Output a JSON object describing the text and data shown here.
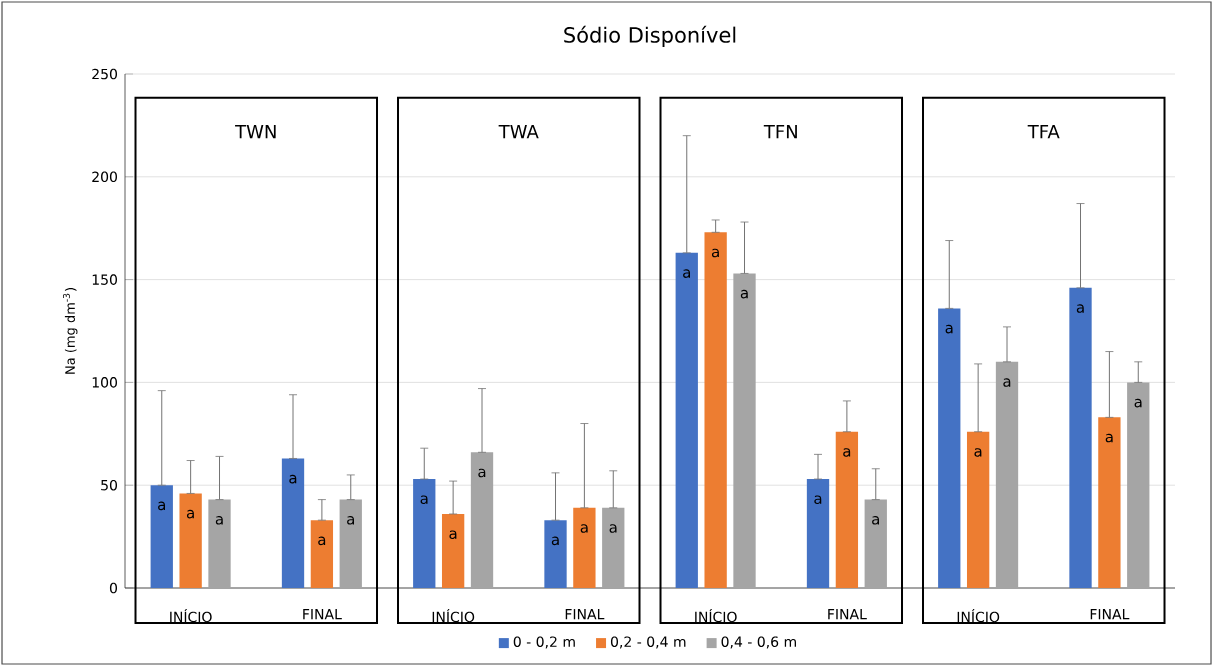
{
  "chart_data": {
    "type": "bar",
    "title": "Sódio Disponível",
    "ylabel": "Na (mg dm$^{-3}$)",
    "categories": [
      "INÍCIO",
      "FINAL",
      "INÍCIO",
      "FINAL",
      "INÍCIO",
      "FINAL",
      "INÍCIO",
      "FINAL"
    ],
    "series": [
      {
        "name": "0 - 0,2 m",
        "color": "#4472c4",
        "values": [
          50,
          63,
          53,
          33,
          163,
          53,
          136,
          146
        ],
        "errors": [
          [
            50,
            96
          ],
          [
            63,
            94
          ],
          [
            53,
            68
          ],
          [
            33,
            56
          ],
          [
            163,
            220
          ],
          [
            53,
            65
          ],
          [
            136,
            169
          ],
          [
            146,
            187
          ]
        ],
        "value_labels": [
          "a",
          "a",
          "a",
          "a",
          "a",
          "a",
          "a",
          "a"
        ]
      },
      {
        "name": "0,2 - 0,4 m",
        "color": "#ed7d31",
        "values": [
          46,
          33,
          36,
          39,
          173,
          76,
          76,
          83
        ],
        "errors": [
          [
            46,
            62
          ],
          [
            33,
            43
          ],
          [
            36,
            52
          ],
          [
            39,
            80
          ],
          [
            173,
            179
          ],
          [
            76,
            91
          ],
          [
            76,
            109
          ],
          [
            83,
            115
          ]
        ],
        "value_labels": [
          "a",
          "a",
          "a",
          "a",
          "a",
          "a",
          "a",
          "a"
        ]
      },
      {
        "name": "0,4 - 0,6 m",
        "color": "#a5a5a5",
        "values": [
          43,
          43,
          66,
          39,
          153,
          43,
          110,
          100
        ],
        "errors": [
          [
            43,
            64
          ],
          [
            43,
            55
          ],
          [
            66,
            97
          ],
          [
            39,
            57
          ],
          [
            153,
            178
          ],
          [
            43,
            58
          ],
          [
            110,
            127
          ],
          [
            100,
            110
          ]
        ],
        "value_labels": [
          "a",
          "a",
          "a",
          "a",
          "a",
          "a",
          "a",
          "a"
        ]
      }
    ],
    "annotations": [
      "TWN",
      "TWA",
      "TFN",
      "TFA"
    ],
    "ylim": [
      0,
      250
    ],
    "yticks": [
      0,
      50,
      100,
      150,
      200,
      250
    ],
    "grid": "y",
    "legend": "bottom"
  }
}
